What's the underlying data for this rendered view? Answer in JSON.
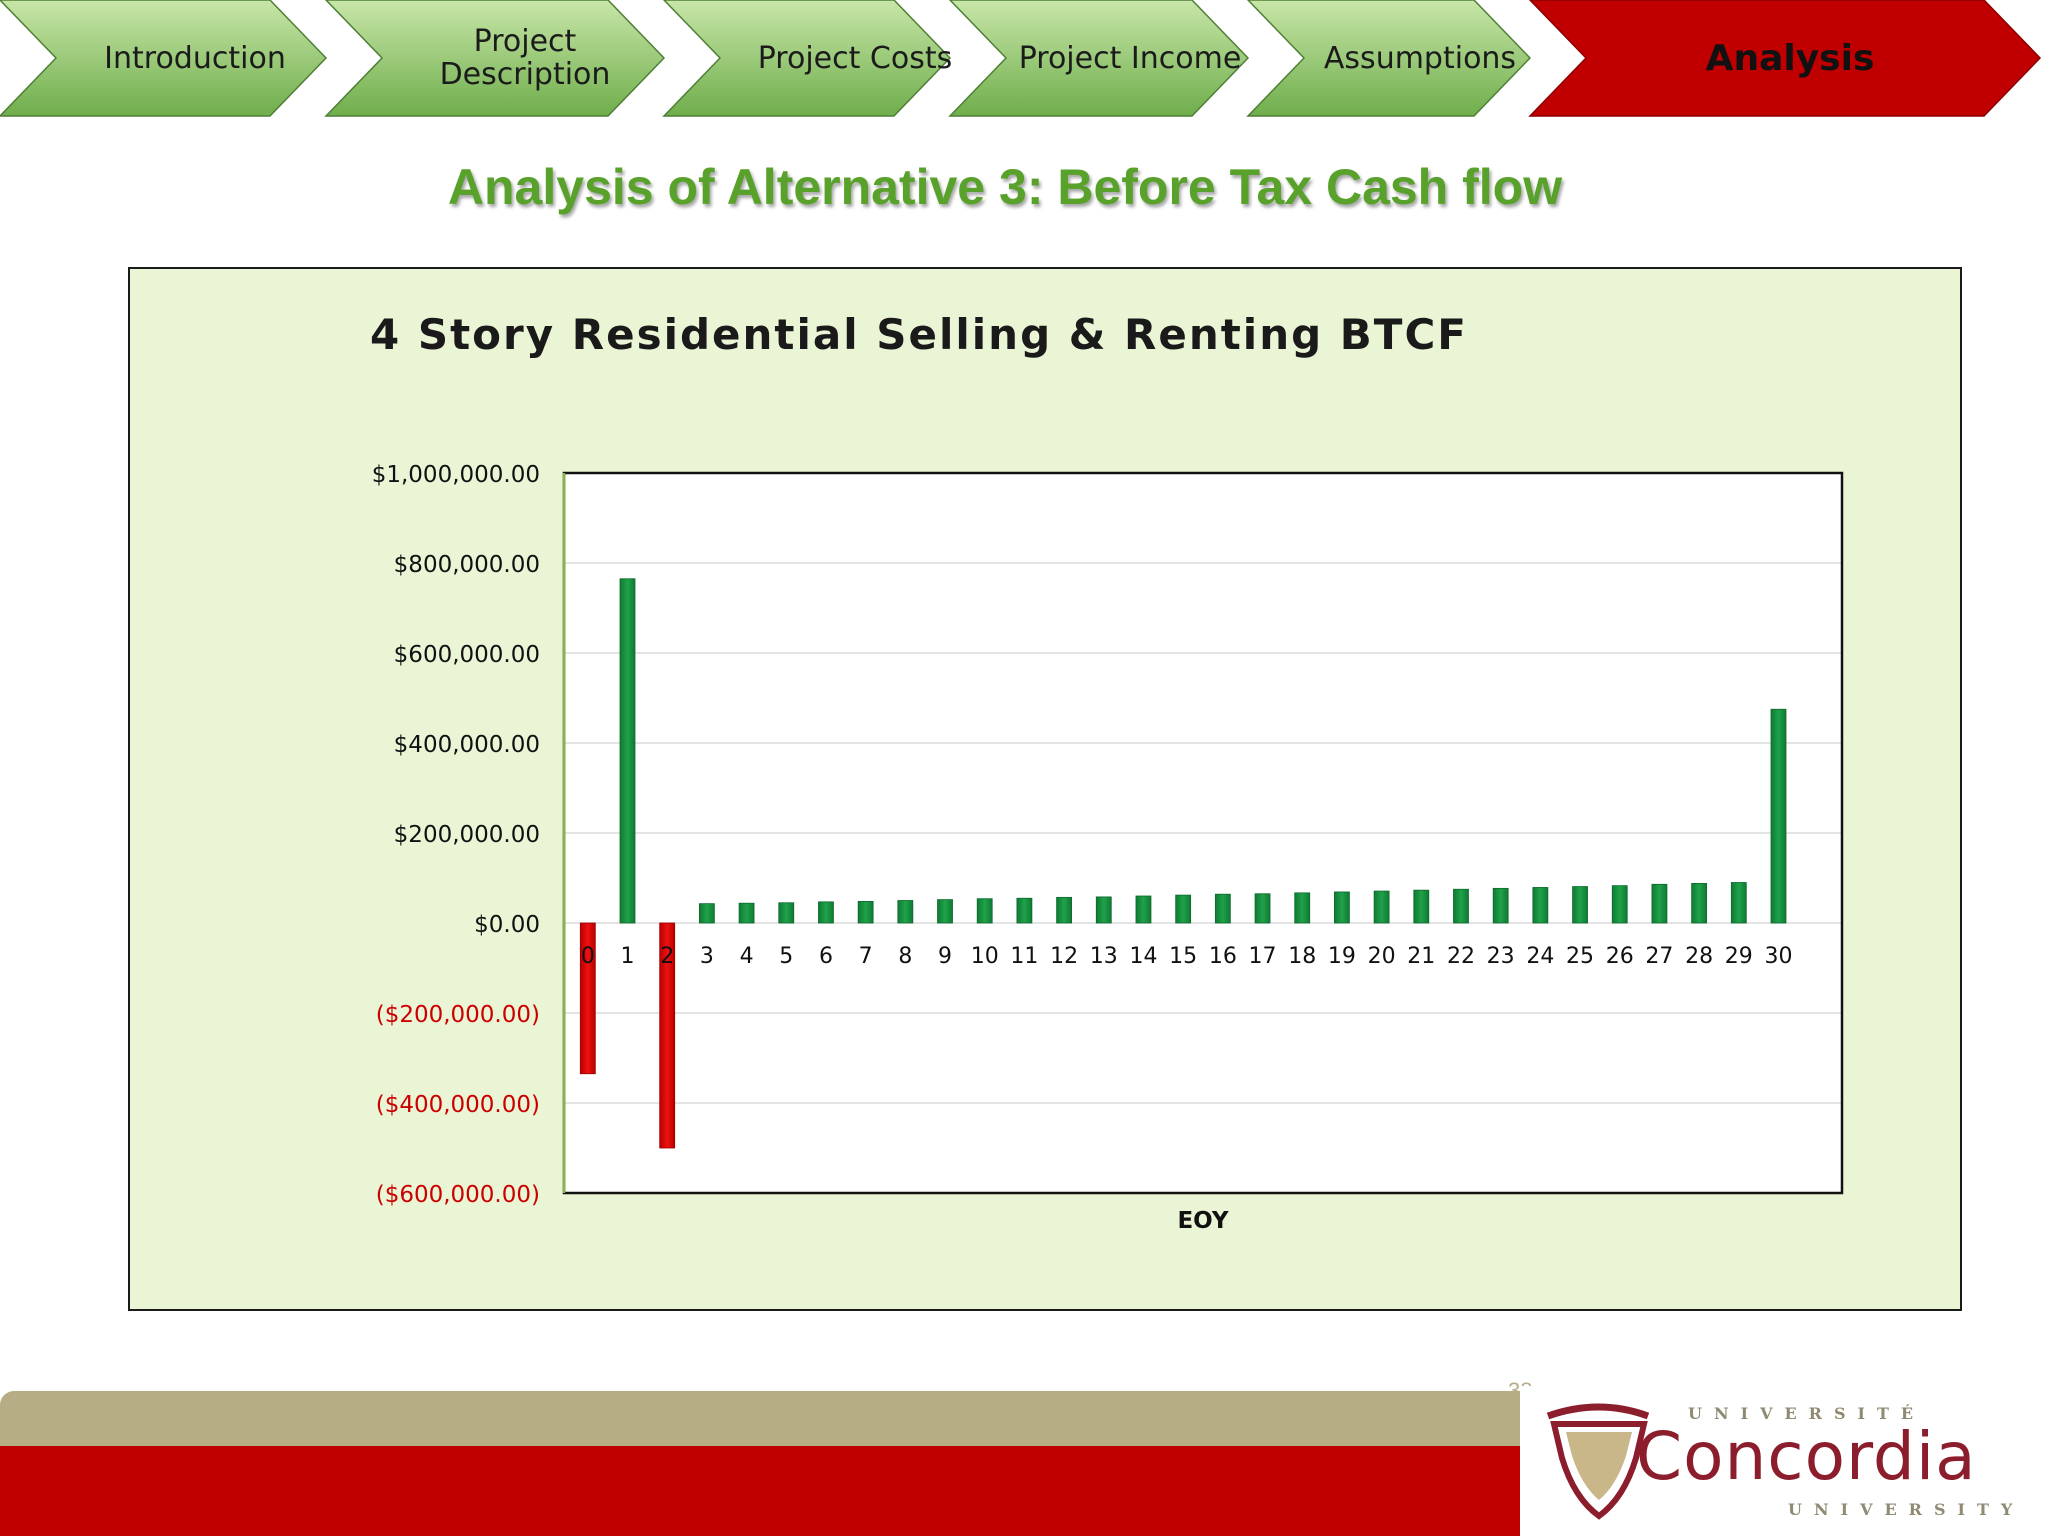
{
  "nav": {
    "tabs": [
      {
        "label": "Introduction",
        "active": false
      },
      {
        "label": "Project\nDescription",
        "active": false
      },
      {
        "label": "Project Costs",
        "active": false
      },
      {
        "label": "Project Income",
        "active": false
      },
      {
        "label": "Assumptions",
        "active": false
      },
      {
        "label": "Analysis",
        "active": true
      }
    ],
    "colors": {
      "green_light": "#c8e6a8",
      "green_dark": "#6fae4c",
      "active_red": "#c00000"
    }
  },
  "slide": {
    "title": "Analysis of Alternative 3: Before Tax Cash flow",
    "page_number": "38"
  },
  "logo": {
    "top_text": "UNIVERSITÉ",
    "name": "Concordia",
    "bottom_text": "UNIVERSITY"
  },
  "chart_data": {
    "type": "bar",
    "title": "4 Story Residential Selling & Renting BTCF",
    "xlabel": "EOY",
    "ylabel": "",
    "ylim": [
      -600000,
      1000000
    ],
    "yticks": [
      {
        "value": 1000000,
        "label": "$1,000,000.00"
      },
      {
        "value": 800000,
        "label": "$800,000.00"
      },
      {
        "value": 600000,
        "label": "$600,000.00"
      },
      {
        "value": 400000,
        "label": "$400,000.00"
      },
      {
        "value": 200000,
        "label": "$200,000.00"
      },
      {
        "value": 0,
        "label": "$0.00"
      },
      {
        "value": -200000,
        "label": "($200,000.00)"
      },
      {
        "value": -400000,
        "label": "($400,000.00)"
      },
      {
        "value": -600000,
        "label": "($600,000.00)"
      }
    ],
    "categories": [
      "0",
      "1",
      "2",
      "3",
      "4",
      "5",
      "6",
      "7",
      "8",
      "9",
      "10",
      "11",
      "12",
      "13",
      "14",
      "15",
      "16",
      "17",
      "18",
      "19",
      "20",
      "21",
      "22",
      "23",
      "24",
      "25",
      "26",
      "27",
      "28",
      "29",
      "30"
    ],
    "values": [
      -335000,
      765000,
      -500000,
      43000,
      44000,
      45000,
      47000,
      48000,
      50000,
      52000,
      54000,
      55000,
      57000,
      58000,
      60000,
      62000,
      64000,
      65000,
      67000,
      69000,
      71000,
      73000,
      75000,
      77000,
      79000,
      81000,
      83000,
      86000,
      88000,
      90000,
      475000
    ],
    "grid": true,
    "legend": "none",
    "colors": {
      "positive": "#1fa24a",
      "negative": "#ee1111",
      "negative_label": "#cc0000",
      "plot_bg": "#ffffff"
    }
  }
}
